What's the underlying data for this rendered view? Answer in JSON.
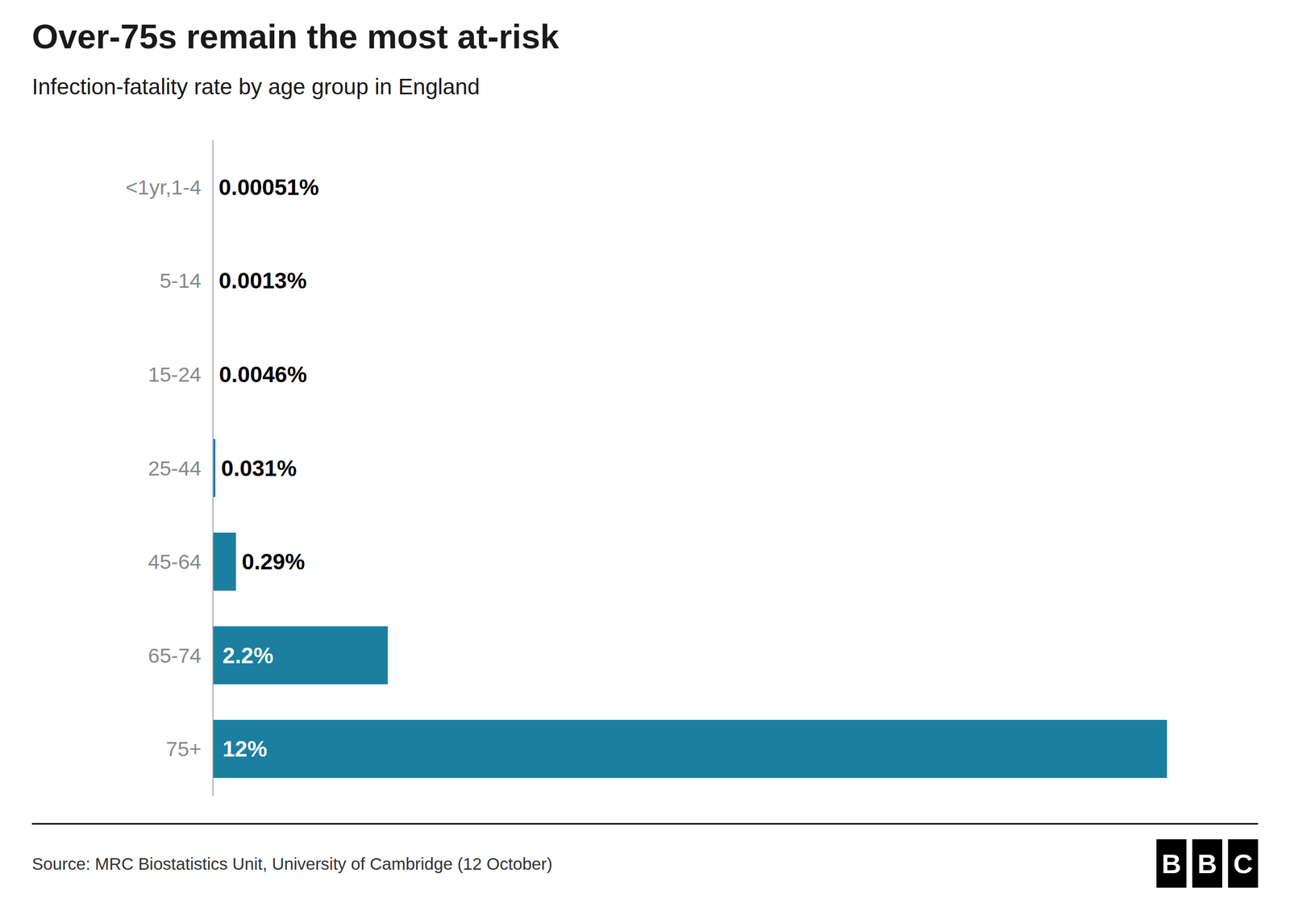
{
  "chart_data": {
    "type": "bar",
    "orientation": "horizontal",
    "title": "Over-75s remain the most at-risk",
    "subtitle": "Infection-fatality rate by age group in England",
    "source": "Source: MRC Biostatistics Unit, University of Cambridge (12 October)",
    "logo": "BBC",
    "categories": [
      "<1yr,1-4",
      "5-14",
      "15-24",
      "25-44",
      "45-64",
      "65-74",
      "75+"
    ],
    "values": [
      0.00051,
      0.0013,
      0.0046,
      0.031,
      0.29,
      2.2,
      12.0
    ],
    "value_labels": [
      "0.00051%",
      "0.0013%",
      "0.0046%",
      "0.031%",
      "0.29%",
      "2.2%",
      "12%"
    ],
    "color": "#1a7fa0",
    "xlim": [
      0,
      13.0
    ],
    "data_labels": true,
    "tick_labels": "y",
    "grid": false
  }
}
